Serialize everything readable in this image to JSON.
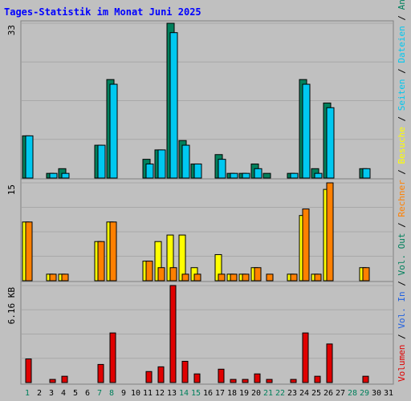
{
  "chart_data": {
    "type": "bar",
    "title": "Tages-Statistik im Monat Juni 2025",
    "categories": [
      "1",
      "2",
      "3",
      "4",
      "5",
      "6",
      "7",
      "8",
      "9",
      "10",
      "11",
      "12",
      "13",
      "14",
      "15",
      "16",
      "17",
      "18",
      "19",
      "20",
      "21",
      "22",
      "23",
      "24",
      "25",
      "26",
      "27",
      "28",
      "29",
      "30",
      "31"
    ],
    "weekend_days": [
      "1",
      "7",
      "8",
      "14",
      "15",
      "21",
      "22",
      "28",
      "29"
    ],
    "panels": [
      {
        "name": "hits-files",
        "ymax": 33,
        "ymax_label": "33",
        "series": [
          {
            "name": "Anfragen",
            "color": "#00805c",
            "values": [
              9,
              0,
              1,
              2,
              0,
              0,
              7,
              21,
              0,
              0,
              4,
              6,
              33,
              8,
              3,
              0,
              5,
              1,
              1,
              3,
              1,
              0,
              1,
              21,
              2,
              16,
              0,
              0,
              2,
              0,
              0
            ]
          },
          {
            "name": "Dateien",
            "color": "#00c8f0",
            "values": [
              9,
              0,
              1,
              1,
              0,
              0,
              7,
              20,
              0,
              0,
              3,
              6,
              31,
              7,
              3,
              0,
              4,
              1,
              1,
              2,
              0,
              0,
              1,
              20,
              1,
              15,
              0,
              0,
              2,
              0,
              0
            ]
          }
        ]
      },
      {
        "name": "pages-visits",
        "ymax": 15,
        "ymax_label": "15",
        "series": [
          {
            "name": "Seiten",
            "color": "#00c8f0",
            "values": [
              0,
              0,
              0,
              0,
              0,
              0,
              0,
              0,
              0,
              0,
              0,
              0,
              0,
              0,
              0,
              0,
              0,
              0,
              0,
              0,
              0,
              0,
              0,
              0,
              0,
              0,
              0,
              0,
              0,
              0,
              0
            ]
          },
          {
            "name": "Besuche",
            "color": "#ffff00",
            "values": [
              9,
              0,
              1,
              1,
              0,
              0,
              6,
              9,
              0,
              0,
              3,
              6,
              7,
              7,
              2,
              0,
              4,
              1,
              1,
              2,
              0,
              0,
              1,
              10,
              1,
              14,
              0,
              0,
              2,
              0,
              0
            ]
          },
          {
            "name": "Rechner",
            "color": "#ff8000",
            "values": [
              9,
              0,
              1,
              1,
              0,
              0,
              6,
              9,
              0,
              0,
              3,
              2,
              2,
              1,
              1,
              0,
              1,
              1,
              1,
              2,
              1,
              0,
              1,
              11,
              1,
              15,
              0,
              0,
              2,
              0,
              0
            ]
          }
        ]
      },
      {
        "name": "volume",
        "ymax": 6.16,
        "ymax_label": "6.16 KB",
        "unit": "KB",
        "series": [
          {
            "name": "Vol. Out",
            "color": "#00805c",
            "values": [
              0,
              0,
              0,
              0,
              0,
              0,
              0,
              0,
              0,
              0,
              0,
              0,
              0,
              0,
              0,
              0,
              0,
              0,
              0,
              0,
              0,
              0,
              0,
              0,
              0,
              0,
              0,
              0,
              0,
              0,
              0
            ]
          },
          {
            "name": "Vol. In",
            "color": "#2060e0",
            "values": [
              0,
              0,
              0,
              0,
              0,
              0,
              0,
              0,
              0,
              0,
              0,
              0,
              0,
              0,
              0,
              0,
              0,
              0,
              0,
              0,
              0,
              0,
              0,
              0,
              0,
              0,
              0,
              0,
              0,
              0,
              0
            ]
          },
          {
            "name": "Volumen",
            "color": "#e00000",
            "values": [
              1.5,
              0,
              0.2,
              0.4,
              0,
              0,
              1.15,
              3.15,
              0,
              0,
              0.7,
              1,
              6.16,
              1.35,
              0.55,
              0,
              0.85,
              0.2,
              0.2,
              0.55,
              0.2,
              0,
              0.2,
              3.15,
              0.4,
              2.45,
              0,
              0,
              0.4,
              0,
              0
            ]
          }
        ]
      }
    ],
    "right_legend": [
      {
        "text": "Volumen",
        "color": "#e00000"
      },
      {
        "text": "Vol. In",
        "color": "#2060e0"
      },
      {
        "text": "Vol. Out",
        "color": "#00805c"
      },
      {
        "text": "Rechner",
        "color": "#ff8000"
      },
      {
        "text": "Besuche",
        "color": "#ffff00"
      },
      {
        "text": "Seiten",
        "color": "#00c8f0"
      },
      {
        "text": "Dateien",
        "color": "#00c8f0"
      },
      {
        "text": "Anfragen",
        "color": "#00805c"
      }
    ],
    "legend_separator": "/",
    "colors": {
      "background": "#c0c0c0",
      "title": "#0000ff",
      "axis_text": "#000000",
      "weekday_label": "#000000",
      "weekend_label": "#00805c",
      "gridline": "#a8a8a8"
    },
    "grid": true,
    "legend_position": "right-vertical"
  }
}
